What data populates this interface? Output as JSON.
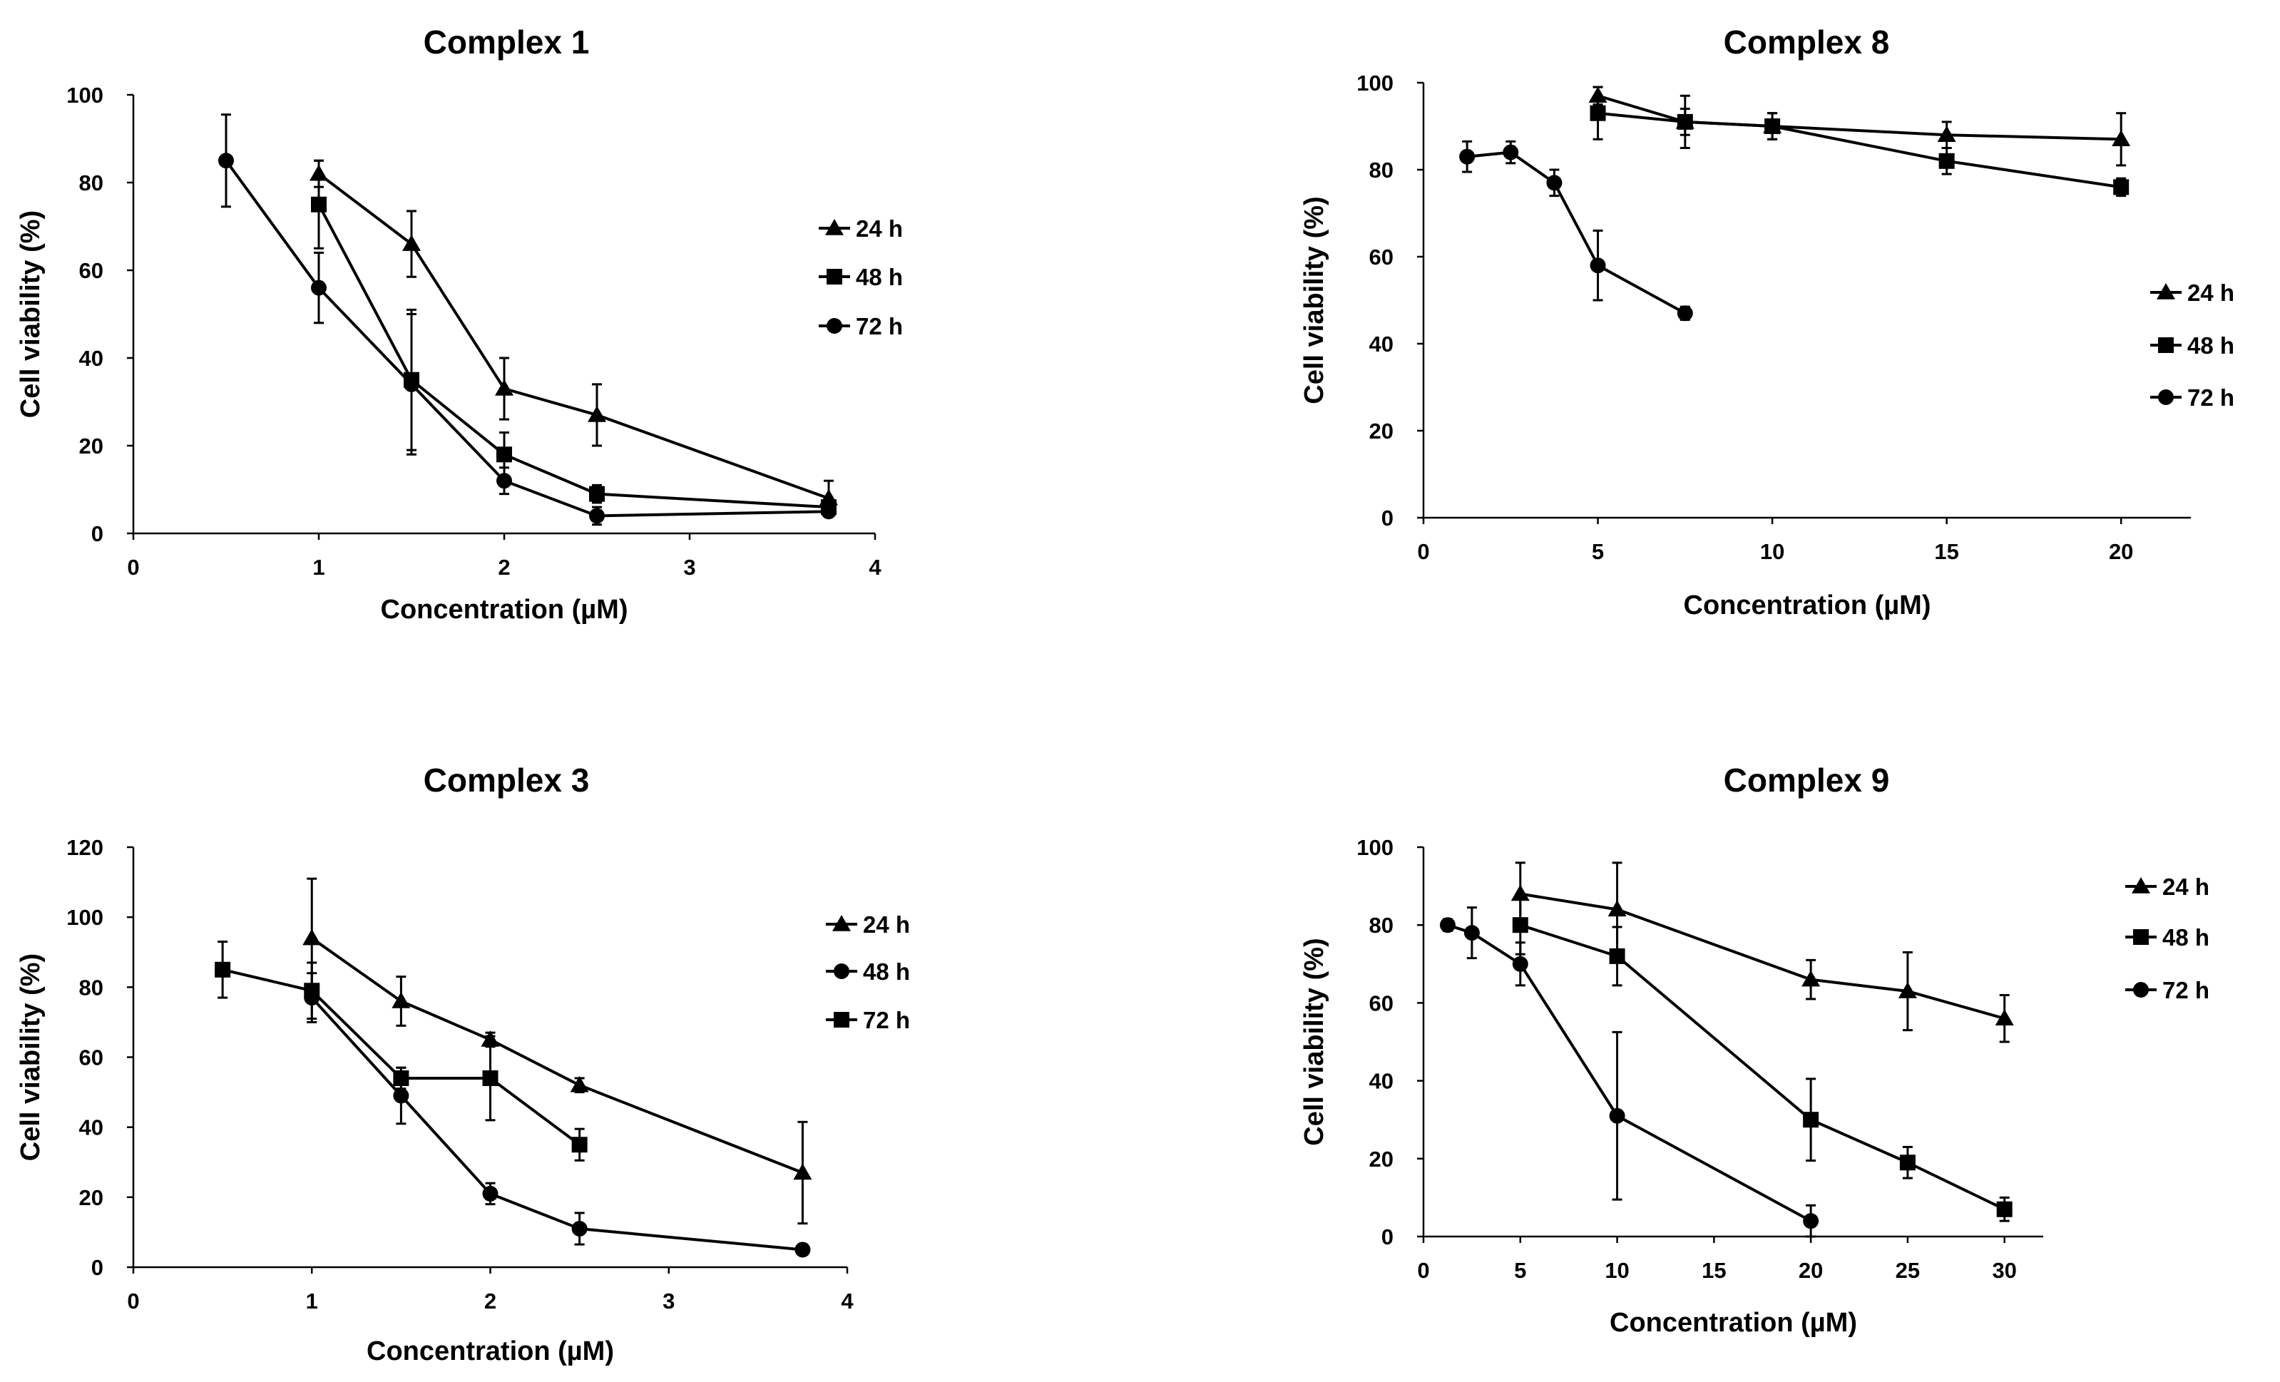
{
  "chart_data": [
    {
      "type": "line",
      "title": "Complex 1",
      "xlabel": "Concentration (µM)",
      "ylabel": "Cell viability (%)",
      "xlim": [
        0,
        4
      ],
      "ylim": [
        0,
        100
      ],
      "xticks": [
        0,
        1,
        2,
        3,
        4
      ],
      "yticks": [
        0,
        20,
        40,
        60,
        80,
        100
      ],
      "legend_position": "right",
      "series": [
        {
          "name": "24 h",
          "marker": "triangle",
          "x": [
            1,
            1.5,
            2,
            2.5,
            3.75
          ],
          "y": [
            82,
            66,
            33,
            27,
            8
          ],
          "err": [
            3,
            7.5,
            7,
            7,
            4
          ]
        },
        {
          "name": "48 h",
          "marker": "square",
          "x": [
            1,
            1.5,
            2,
            2.5,
            3.75
          ],
          "y": [
            75,
            35,
            18,
            9,
            6
          ],
          "err": [
            10,
            16,
            5,
            2,
            2
          ]
        },
        {
          "name": "72 h",
          "marker": "circle",
          "x": [
            0.5,
            1,
            1.5,
            2,
            2.5,
            3.75
          ],
          "y": [
            85,
            56,
            34,
            12,
            4,
            5
          ],
          "err": [
            10.5,
            8,
            16,
            3,
            2,
            1
          ]
        }
      ]
    },
    {
      "type": "line",
      "title": "Complex 8",
      "xlabel": "Concentration (µM)",
      "ylabel": "Cell viability (%)",
      "xlim": [
        0,
        22
      ],
      "ylim": [
        0,
        100
      ],
      "xticks": [
        0,
        5,
        10,
        15,
        20
      ],
      "yticks": [
        0,
        20,
        40,
        60,
        80,
        100
      ],
      "legend_position": "right",
      "series": [
        {
          "name": "24 h",
          "marker": "triangle",
          "x": [
            5,
            7.5,
            10,
            15,
            20
          ],
          "y": [
            97,
            91,
            90,
            88,
            87
          ],
          "err": [
            2,
            3,
            3,
            3,
            6
          ]
        },
        {
          "name": "48 h",
          "marker": "square",
          "x": [
            5,
            7.5,
            10,
            15,
            20
          ],
          "y": [
            93,
            91,
            90,
            82,
            76
          ],
          "err": [
            6,
            6,
            3,
            3,
            2
          ]
        },
        {
          "name": "72 h",
          "marker": "circle",
          "x": [
            1.25,
            2.5,
            3.75,
            5,
            7.5
          ],
          "y": [
            83,
            84,
            77,
            58,
            47
          ],
          "err": [
            3.5,
            2.5,
            3,
            8,
            1.5
          ]
        }
      ]
    },
    {
      "type": "line",
      "title": "Complex 3",
      "xlabel": "Concentration (µM)",
      "ylabel": "Cell viability (%)",
      "xlim": [
        0,
        4
      ],
      "ylim": [
        0,
        120
      ],
      "xticks": [
        0,
        1,
        2,
        3,
        4
      ],
      "yticks": [
        0,
        20,
        40,
        60,
        80,
        100,
        120
      ],
      "legend_position": "right",
      "series": [
        {
          "name": "24 h",
          "marker": "triangle",
          "x": [
            1,
            1.5,
            2,
            2.5,
            3.75
          ],
          "y": [
            94,
            76,
            65,
            52,
            27
          ],
          "err": [
            17,
            7,
            2,
            2,
            14.5
          ]
        },
        {
          "name": "48 h",
          "marker": "circle",
          "x": [
            1,
            1.5,
            2,
            2.5,
            3.75
          ],
          "y": [
            77,
            49,
            21,
            11,
            5
          ],
          "err": [
            7,
            8,
            3,
            4.5,
            1.5
          ]
        },
        {
          "name": "72 h",
          "marker": "square",
          "x": [
            0.5,
            1,
            1.5,
            2,
            2.5
          ],
          "y": [
            85,
            79,
            54,
            54,
            35
          ],
          "err": [
            8,
            8,
            3,
            12,
            4.5
          ]
        }
      ]
    },
    {
      "type": "line",
      "title": "Complex 9",
      "xlabel": "Concentration (µM)",
      "ylabel": "Cell viability (%)",
      "xlim": [
        0,
        32
      ],
      "ylim": [
        0,
        100
      ],
      "xticks": [
        0,
        5,
        10,
        15,
        20,
        25,
        30
      ],
      "yticks": [
        0,
        20,
        40,
        60,
        80,
        100
      ],
      "legend_position": "right",
      "series": [
        {
          "name": "24 h",
          "marker": "triangle",
          "x": [
            5,
            10,
            20,
            25,
            30
          ],
          "y": [
            88,
            84,
            66,
            63,
            56
          ],
          "err": [
            8,
            12,
            5,
            10,
            6
          ]
        },
        {
          "name": "48 h",
          "marker": "square",
          "x": [
            5,
            10,
            20,
            25,
            30
          ],
          "y": [
            80,
            72,
            30,
            19,
            7
          ],
          "err": [
            7.5,
            7.5,
            10.5,
            4,
            3
          ]
        },
        {
          "name": "72 h",
          "marker": "circle",
          "x": [
            1.25,
            2.5,
            5,
            10,
            20
          ],
          "y": [
            80,
            78,
            70,
            31,
            4
          ],
          "err": [
            1.5,
            6.5,
            5.5,
            21.5,
            4
          ]
        }
      ]
    }
  ]
}
